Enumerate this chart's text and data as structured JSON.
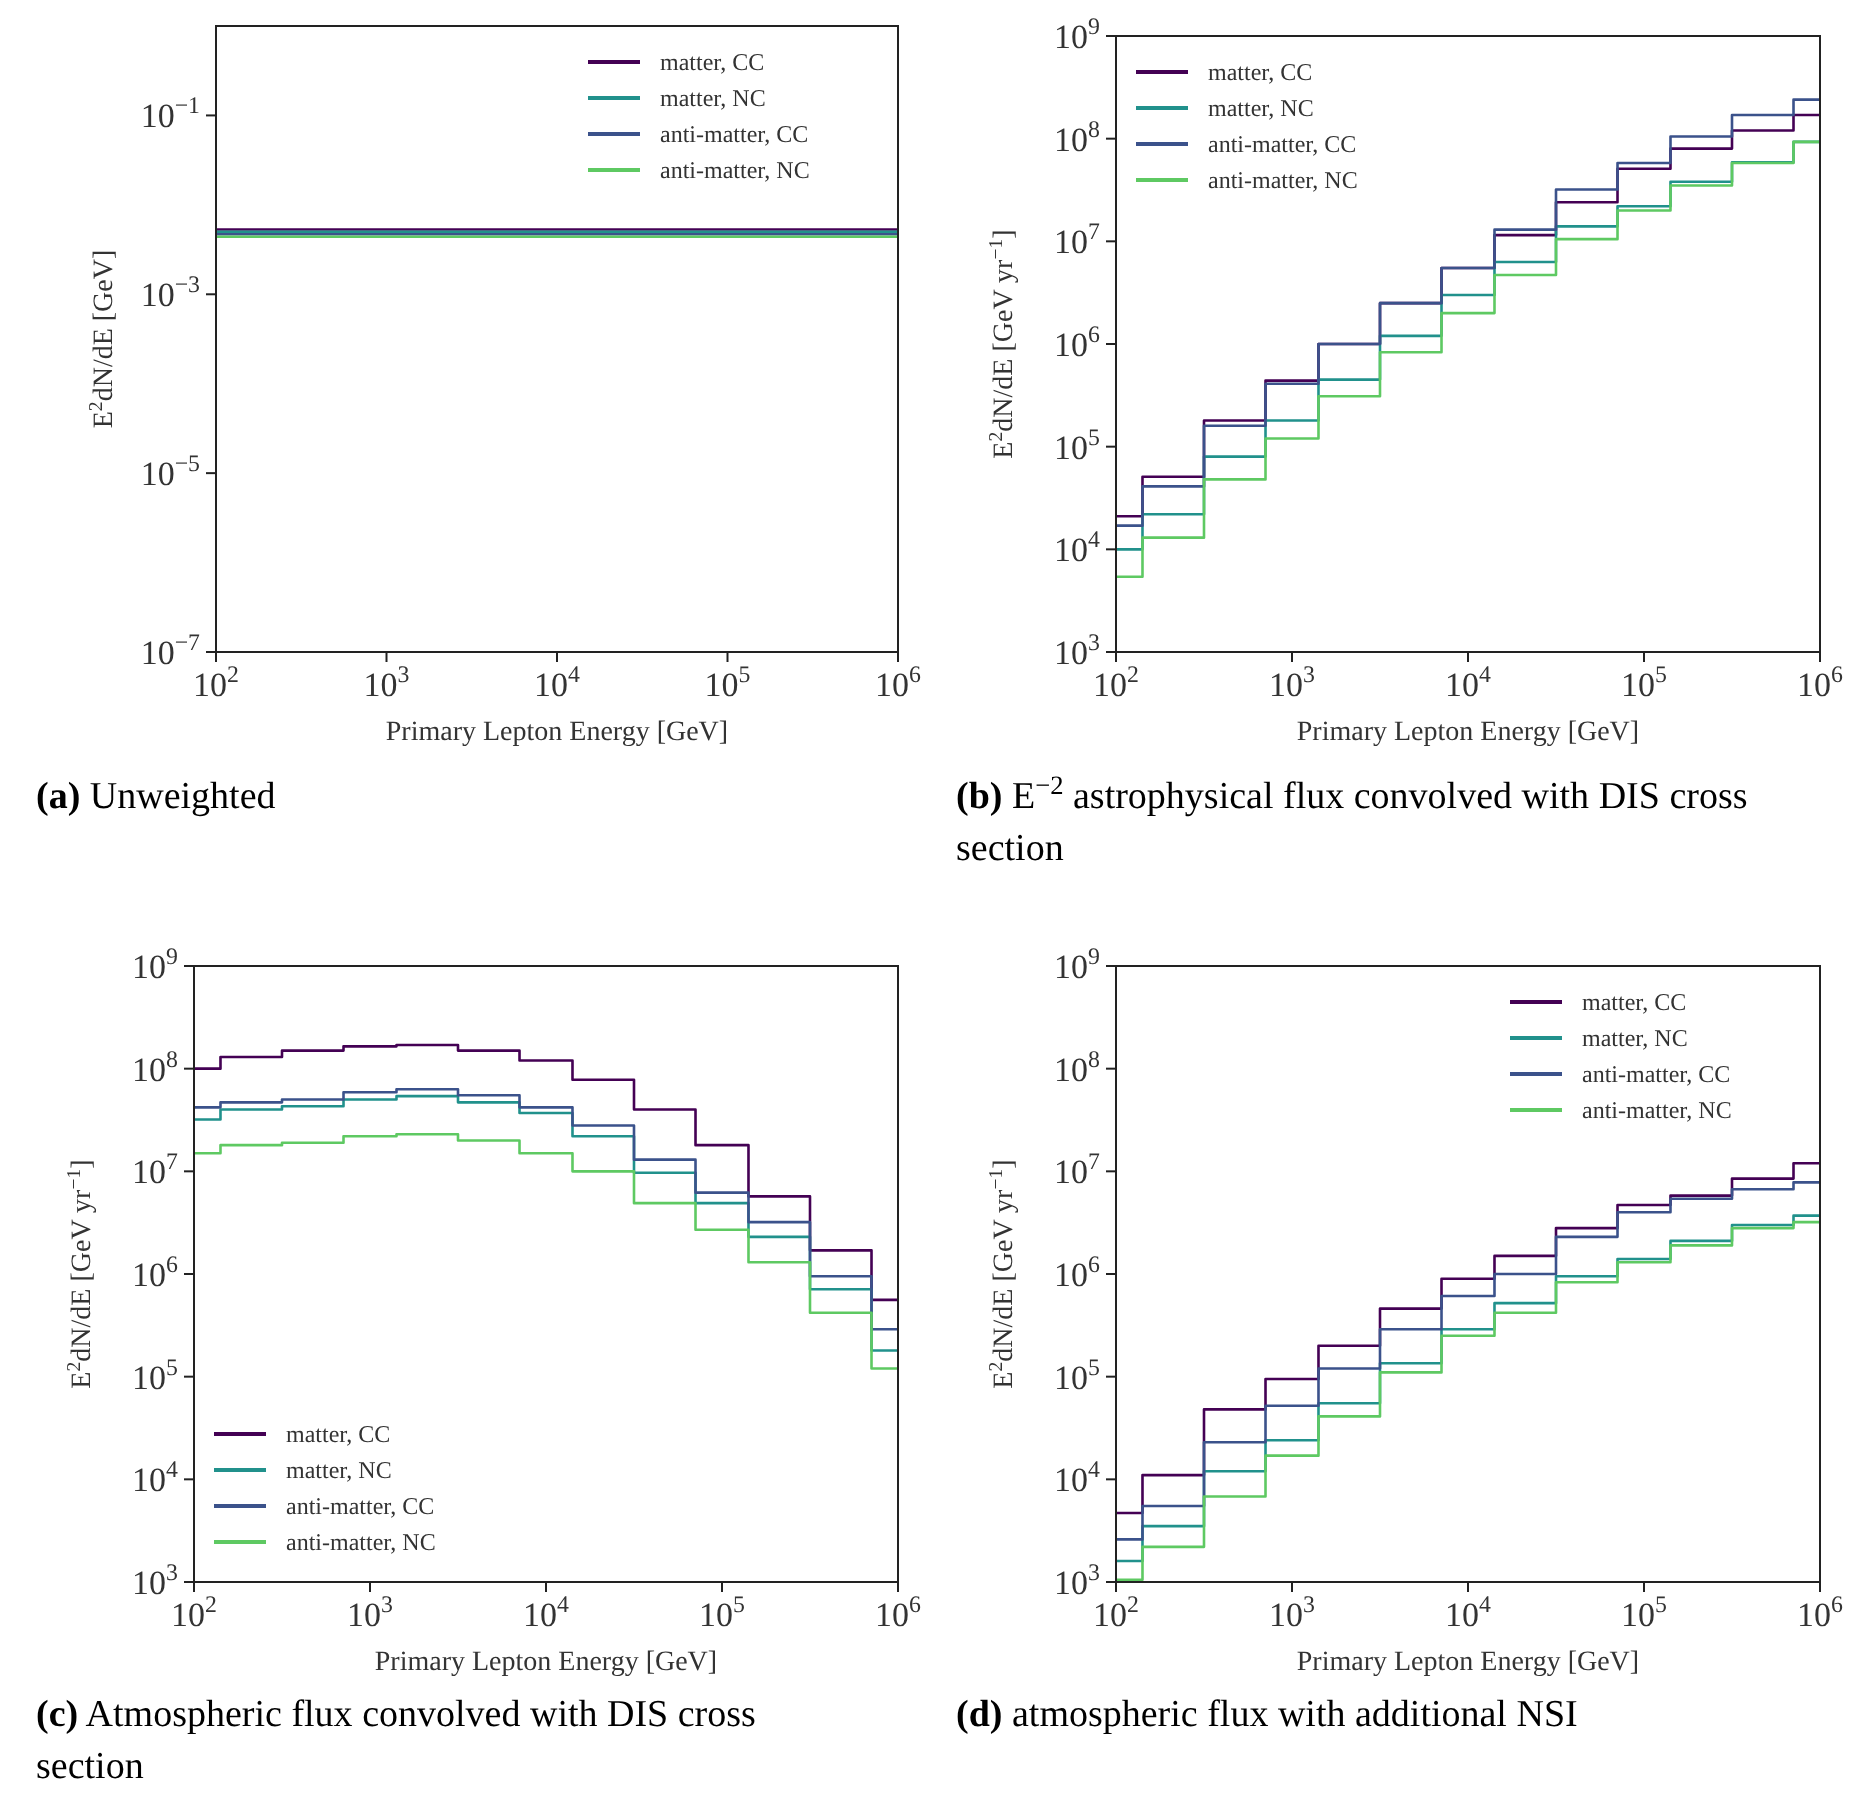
{
  "chart_data": [
    {
      "type": "step",
      "title": "(a) Unweighted",
      "xlabel": "Primary Lepton Energy [GeV]",
      "ylabel": "E$^{2}$dN/dE [GeV]",
      "log": "xy",
      "legend": "top right",
      "xlim": [
        100,
        1000000
      ],
      "ylim": [
        1e-07,
        1
      ],
      "xticks": [
        {
          "value": 100,
          "label": "10$^{2}$"
        },
        {
          "value": 1000,
          "label": "10$^{3}$"
        },
        {
          "value": 10000,
          "label": "10$^{4}$"
        },
        {
          "value": 100000,
          "label": "10$^{5}$"
        },
        {
          "value": 1000000,
          "label": "10$^{6}$"
        }
      ],
      "yticks": [
        {
          "value": 1e-07,
          "label": "10$^{−7}$"
        },
        {
          "value": 1e-05,
          "label": "10$^{−5}$"
        },
        {
          "value": 0.001,
          "label": "10$^{−3}$"
        },
        {
          "value": 0.1,
          "label": "10$^{−1}$"
        }
      ],
      "x": [
        100,
        200,
        500,
        1000,
        2000,
        5000,
        10000,
        20000,
        50000,
        100000,
        200000,
        500000,
        1000000
      ],
      "series": [
        {
          "name": "matter, CC",
          "color": "#440154",
          "values": [
            0.0053,
            0.0053,
            0.0053,
            0.0053,
            0.0053,
            0.0053,
            0.0053,
            0.0053,
            0.0053,
            0.0053,
            0.0053,
            0.0053,
            0.0053
          ]
        },
        {
          "name": "matter, NC",
          "color": "#21918c",
          "values": [
            0.005,
            0.005,
            0.005,
            0.005,
            0.005,
            0.005,
            0.005,
            0.005,
            0.005,
            0.005,
            0.005,
            0.005,
            0.005
          ]
        },
        {
          "name": "anti-matter, CC",
          "color": "#3b528b",
          "values": [
            0.0047,
            0.0047,
            0.0047,
            0.0047,
            0.0047,
            0.0047,
            0.0047,
            0.0047,
            0.0047,
            0.0047,
            0.0047,
            0.0047,
            0.0047
          ]
        },
        {
          "name": "anti-matter, NC",
          "color": "#5ec962",
          "values": [
            0.0044,
            0.0044,
            0.0044,
            0.0044,
            0.0044,
            0.0044,
            0.0044,
            0.0044,
            0.0044,
            0.0044,
            0.0044,
            0.0044,
            0.0044
          ]
        }
      ]
    },
    {
      "type": "step",
      "title": "(b) E$^{−2}$ astrophysical flux convolved with DIS cross section",
      "xlabel": "Primary Lepton Energy [GeV]",
      "ylabel": "E$^{2}$dN/dE [GeV yr$^{−1}$]",
      "log": "xy",
      "legend": "top left",
      "xlim": [
        100,
        1000000
      ],
      "ylim": [
        1000,
        1000000000
      ],
      "xticks": [
        {
          "value": 100,
          "label": "10$^{2}$"
        },
        {
          "value": 1000,
          "label": "10$^{3}$"
        },
        {
          "value": 10000,
          "label": "10$^{4}$"
        },
        {
          "value": 100000,
          "label": "10$^{5}$"
        },
        {
          "value": 1000000,
          "label": "10$^{6}$"
        }
      ],
      "yticks": [
        {
          "value": 1000,
          "label": "10$^{3}$"
        },
        {
          "value": 10000,
          "label": "10$^{4}$"
        },
        {
          "value": 100000,
          "label": "10$^{5}$"
        },
        {
          "value": 1000000,
          "label": "10$^{6}$"
        },
        {
          "value": 10000000,
          "label": "10$^{7}$"
        },
        {
          "value": 100000000,
          "label": "10$^{8}$"
        },
        {
          "value": 1000000000,
          "label": "10$^{9}$"
        }
      ],
      "x": [
        100,
        200,
        500,
        1000,
        2000,
        5000,
        10000,
        20000,
        50000,
        100000,
        200000,
        500000,
        1000000
      ],
      "series": [
        {
          "name": "matter, CC",
          "color": "#440154",
          "values": [
            21000,
            51000,
            180000,
            440000,
            1000000,
            2500000,
            5500000,
            11500000,
            24000000,
            51000000,
            80000000,
            120000000,
            170000000
          ]
        },
        {
          "name": "matter, NC",
          "color": "#21918c",
          "values": [
            10000,
            22000,
            80000,
            180000,
            450000,
            1200000,
            3000000,
            6300000,
            14000000,
            22000000,
            38000000,
            59000000,
            93000000
          ]
        },
        {
          "name": "anti-matter, CC",
          "color": "#3b528b",
          "values": [
            17000,
            41000,
            160000,
            410000,
            1000000,
            2500000,
            5500000,
            13000000,
            32000000,
            58000000,
            105000000,
            170000000,
            240000000
          ]
        },
        {
          "name": "anti-matter, NC",
          "color": "#5ec962",
          "values": [
            5400,
            13000,
            48000,
            120000,
            310000,
            830000,
            2000000,
            4700000,
            10500000,
            20000000,
            35000000,
            58000000,
            93000000
          ]
        }
      ]
    },
    {
      "type": "step",
      "title": "(c) Atmospheric flux convolved with DIS cross section",
      "xlabel": "Primary Lepton Energy [GeV]",
      "ylabel": "E$^{2}$dN/dE [GeV yr$^{−1}$]",
      "log": "xy",
      "legend": "bottom left",
      "xlim": [
        100,
        1000000
      ],
      "ylim": [
        1000,
        1000000000
      ],
      "xticks": [
        {
          "value": 100,
          "label": "10$^{2}$"
        },
        {
          "value": 1000,
          "label": "10$^{3}$"
        },
        {
          "value": 10000,
          "label": "10$^{4}$"
        },
        {
          "value": 100000,
          "label": "10$^{5}$"
        },
        {
          "value": 1000000,
          "label": "10$^{6}$"
        }
      ],
      "yticks": [
        {
          "value": 1000,
          "label": "10$^{3}$"
        },
        {
          "value": 10000,
          "label": "10$^{4}$"
        },
        {
          "value": 100000,
          "label": "10$^{5}$"
        },
        {
          "value": 1000000,
          "label": "10$^{6}$"
        },
        {
          "value": 10000000,
          "label": "10$^{7}$"
        },
        {
          "value": 100000000,
          "label": "10$^{8}$"
        },
        {
          "value": 1000000000,
          "label": "10$^{9}$"
        }
      ],
      "x": [
        100,
        200,
        500,
        1000,
        2000,
        5000,
        10000,
        20000,
        50000,
        100000,
        200000,
        500000,
        1000000
      ],
      "series": [
        {
          "name": "matter, CC",
          "color": "#440154",
          "values": [
            100000000,
            130000000,
            150000000,
            165000000,
            170000000,
            150000000,
            120000000,
            78000000,
            40000000,
            18000000,
            5700000,
            1700000,
            560000
          ]
        },
        {
          "name": "matter, NC",
          "color": "#21918c",
          "values": [
            32000000,
            40000000,
            43000000,
            50000000,
            54000000,
            47000000,
            37000000,
            22000000,
            9700000,
            4900000,
            2300000,
            710000,
            180000
          ]
        },
        {
          "name": "anti-matter, CC",
          "color": "#3b528b",
          "values": [
            42000000,
            47000000,
            50000000,
            59000000,
            63000000,
            55000000,
            42000000,
            28000000,
            13000000,
            6200000,
            3200000,
            950000,
            290000
          ]
        },
        {
          "name": "anti-matter, NC",
          "color": "#5ec962",
          "values": [
            15000000,
            18000000,
            19000000,
            22000000,
            23000000,
            20000000,
            15000000,
            10000000,
            4900000,
            2700000,
            1300000,
            420000,
            120000
          ]
        }
      ]
    },
    {
      "type": "step",
      "title": "(d) atmospheric flux with additional NSI",
      "xlabel": "Primary Lepton Energy [GeV]",
      "ylabel": "E$^{2}$dN/dE [GeV yr$^{−1}$]",
      "log": "xy",
      "legend": "top right",
      "xlim": [
        100,
        1000000
      ],
      "ylim": [
        1000,
        1000000000
      ],
      "xticks": [
        {
          "value": 100,
          "label": "10$^{2}$"
        },
        {
          "value": 1000,
          "label": "10$^{3}$"
        },
        {
          "value": 10000,
          "label": "10$^{4}$"
        },
        {
          "value": 100000,
          "label": "10$^{5}$"
        },
        {
          "value": 1000000,
          "label": "10$^{6}$"
        }
      ],
      "yticks": [
        {
          "value": 1000,
          "label": "10$^{3}$"
        },
        {
          "value": 10000,
          "label": "10$^{4}$"
        },
        {
          "value": 100000,
          "label": "10$^{5}$"
        },
        {
          "value": 1000000,
          "label": "10$^{6}$"
        },
        {
          "value": 10000000,
          "label": "10$^{7}$"
        },
        {
          "value": 100000000,
          "label": "10$^{8}$"
        },
        {
          "value": 1000000000,
          "label": "10$^{9}$"
        }
      ],
      "x": [
        100,
        200,
        500,
        1000,
        2000,
        5000,
        10000,
        20000,
        50000,
        100000,
        200000,
        500000,
        1000000
      ],
      "series": [
        {
          "name": "matter, CC",
          "color": "#440154",
          "values": [
            4700,
            11000,
            48000,
            95000,
            200000,
            460000,
            900000,
            1500000,
            2800000,
            4700000,
            5800000,
            8500000,
            12000000
          ]
        },
        {
          "name": "matter, NC",
          "color": "#21918c",
          "values": [
            1600,
            3500,
            12000,
            24000,
            55000,
            135000,
            290000,
            520000,
            950000,
            1400000,
            2100000,
            3000000,
            3700000
          ]
        },
        {
          "name": "anti-matter, CC",
          "color": "#3b528b",
          "values": [
            2600,
            5500,
            23000,
            52000,
            120000,
            290000,
            610000,
            1000000,
            2300000,
            4000000,
            5400000,
            6700000,
            7800000
          ]
        },
        {
          "name": "anti-matter, NC",
          "color": "#5ec962",
          "values": [
            1050,
            2200,
            6800,
            17000,
            41000,
            110000,
            250000,
            420000,
            830000,
            1300000,
            1900000,
            2800000,
            3200000
          ]
        }
      ]
    }
  ]
}
